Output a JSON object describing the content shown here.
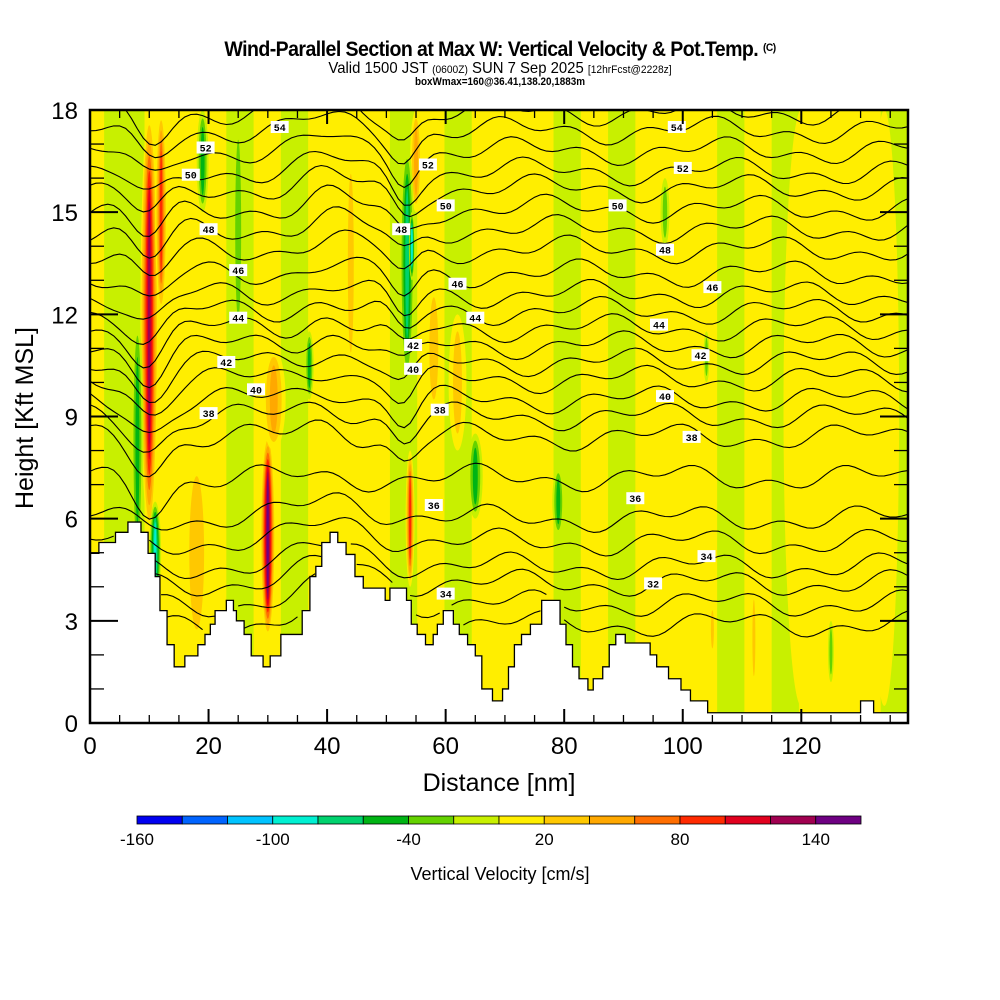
{
  "header": {
    "title": "Wind-Parallel Section at Max W: Vertical Velocity & Pot.Temp.",
    "copyright": "(C)",
    "valid_prefix": "Valid 1500 JST",
    "valid_utc": "(0600Z)",
    "valid_date": "SUN 7 Sep 2025",
    "forecast": "[12hrFcst@2228z]",
    "boxwmax": "boxWmax=160@36.41,138.20,1883m"
  },
  "chart_data": {
    "type": "heatmap",
    "title": "Wind-Parallel Section at Max W: Vertical Velocity & Pot.Temp.",
    "xlabel": "Distance [nm]",
    "ylabel": "Height [Kft MSL]",
    "xlim": [
      0,
      138
    ],
    "ylim": [
      0,
      18
    ],
    "xticks": [
      0,
      20,
      40,
      60,
      80,
      100,
      120
    ],
    "yticks": [
      0,
      3,
      6,
      9,
      12,
      15,
      18
    ],
    "x_minor_step": 5,
    "y_minor_step": 1,
    "colorbar": {
      "label": "Vertical Velocity [cm/s]",
      "range": [
        -160,
        160
      ],
      "step": 20,
      "tick_labels": [
        "-160",
        "-100",
        "-40",
        "20",
        "80",
        "140"
      ],
      "tick_values": [
        -160,
        -100,
        -40,
        20,
        80,
        140
      ],
      "colors": [
        "#0000f0",
        "#0064ff",
        "#00c3ff",
        "#00f0d2",
        "#00d26e",
        "#00b414",
        "#64d200",
        "#c8f000",
        "#ffee00",
        "#ffc800",
        "#ffa800",
        "#ff6e00",
        "#ff2a00",
        "#e1001e",
        "#a00050",
        "#6e0082"
      ]
    },
    "w_features": [
      {
        "x": 10,
        "y0": 5.5,
        "y1": 18,
        "w": 130,
        "width": 3
      },
      {
        "x": 12,
        "y0": 12,
        "y1": 18,
        "w": 90,
        "width": 2
      },
      {
        "x": 8,
        "y0": 4.5,
        "y1": 12,
        "w": -50,
        "width": 2
      },
      {
        "x": 11,
        "y0": 3.5,
        "y1": 6.5,
        "w": -90,
        "width": 2
      },
      {
        "x": 30,
        "y0": 2.5,
        "y1": 8.5,
        "w": 160,
        "width": 2.5
      },
      {
        "x": 31,
        "y0": 8,
        "y1": 11,
        "w": 60,
        "width": 4
      },
      {
        "x": 19,
        "y0": 15,
        "y1": 18,
        "w": -45,
        "width": 2
      },
      {
        "x": 25,
        "y0": 11,
        "y1": 18,
        "w": -30,
        "width": 2
      },
      {
        "x": 37,
        "y0": 9.5,
        "y1": 11.5,
        "w": -50,
        "width": 1.5
      },
      {
        "x": 54,
        "y0": 4,
        "y1": 8,
        "w": 100,
        "width": 1.5
      },
      {
        "x": 55,
        "y0": 15,
        "y1": 18,
        "w": 50,
        "width": 2
      },
      {
        "x": 53.5,
        "y0": 10,
        "y1": 17,
        "w": -70,
        "width": 2.5
      },
      {
        "x": 54.3,
        "y0": 13,
        "y1": 15,
        "w": -90,
        "width": 1
      },
      {
        "x": 65,
        "y0": 6,
        "y1": 8.5,
        "w": -50,
        "width": 2.5
      },
      {
        "x": 79,
        "y0": 5.5,
        "y1": 7.5,
        "w": -55,
        "width": 2
      },
      {
        "x": 58,
        "y0": 9,
        "y1": 13,
        "w": 30,
        "width": 3
      },
      {
        "x": 97,
        "y0": 14,
        "y1": 16,
        "w": -30,
        "width": 1.5
      },
      {
        "x": 104,
        "y0": 10,
        "y1": 11.5,
        "w": -30,
        "width": 1
      },
      {
        "x": 112,
        "y0": 1,
        "y1": 4,
        "w": 40,
        "width": 1
      },
      {
        "x": 105,
        "y0": 2,
        "y1": 3.5,
        "w": 30,
        "width": 1
      },
      {
        "x": 125,
        "y0": 1.2,
        "y1": 3,
        "w": -30,
        "width": 1
      },
      {
        "x": 62,
        "y0": 8,
        "y1": 12,
        "w": 25,
        "width": 3
      },
      {
        "x": 44,
        "y0": 10,
        "y1": 17,
        "w": 30,
        "width": 2
      },
      {
        "x": 85,
        "y0": 10,
        "y1": 18,
        "w": 15,
        "width": 4
      },
      {
        "x": 120,
        "y0": 0.5,
        "y1": 18,
        "w": 15,
        "width": 6
      },
      {
        "x": 134,
        "y0": 0.5,
        "y1": 18,
        "w": 15,
        "width": 5
      },
      {
        "x": 18,
        "y0": 2,
        "y1": 8,
        "w": 30,
        "width": 5
      }
    ],
    "theta_contours": {
      "unit": "Pot.Temp.",
      "levels": [
        31,
        32,
        33,
        34,
        35,
        36,
        37,
        38,
        39,
        40,
        41,
        42,
        43,
        44,
        45,
        46,
        47,
        48,
        49,
        50,
        51,
        52,
        53,
        54,
        55
      ],
      "base_heights": [
        2.9,
        3.5,
        4.1,
        4.6,
        5.3,
        6.0,
        7.2,
        8.4,
        9.0,
        9.5,
        10.1,
        10.6,
        11.1,
        11.6,
        12.1,
        12.6,
        13.2,
        13.9,
        14.5,
        15.1,
        15.7,
        16.2,
        16.8,
        17.4,
        17.95
      ],
      "labels": [
        {
          "text": "54",
          "x": 32,
          "y": 17.5
        },
        {
          "text": "52",
          "x": 19.5,
          "y": 16.9
        },
        {
          "text": "50",
          "x": 17,
          "y": 16.1
        },
        {
          "text": "48",
          "x": 20,
          "y": 14.5
        },
        {
          "text": "46",
          "x": 25,
          "y": 13.3
        },
        {
          "text": "44",
          "x": 25,
          "y": 11.9
        },
        {
          "text": "42",
          "x": 23,
          "y": 10.6
        },
        {
          "text": "40",
          "x": 28,
          "y": 9.8
        },
        {
          "text": "38",
          "x": 20,
          "y": 9.1
        },
        {
          "text": "52",
          "x": 57,
          "y": 16.4
        },
        {
          "text": "50",
          "x": 60,
          "y": 15.2
        },
        {
          "text": "48",
          "x": 52.5,
          "y": 14.5
        },
        {
          "text": "46",
          "x": 62,
          "y": 12.9
        },
        {
          "text": "44",
          "x": 65,
          "y": 11.9
        },
        {
          "text": "42",
          "x": 54.5,
          "y": 11.1
        },
        {
          "text": "40",
          "x": 54.5,
          "y": 10.4
        },
        {
          "text": "38",
          "x": 59,
          "y": 9.2
        },
        {
          "text": "36",
          "x": 58,
          "y": 6.4
        },
        {
          "text": "34",
          "x": 60,
          "y": 3.8
        },
        {
          "text": "54",
          "x": 99,
          "y": 17.5
        },
        {
          "text": "52",
          "x": 100,
          "y": 16.3
        },
        {
          "text": "50",
          "x": 89,
          "y": 15.2
        },
        {
          "text": "48",
          "x": 97,
          "y": 13.9
        },
        {
          "text": "46",
          "x": 105,
          "y": 12.8
        },
        {
          "text": "44",
          "x": 96,
          "y": 11.7
        },
        {
          "text": "42",
          "x": 103,
          "y": 10.8
        },
        {
          "text": "40",
          "x": 97,
          "y": 9.6
        },
        {
          "text": "38",
          "x": 101.5,
          "y": 8.4
        },
        {
          "text": "36",
          "x": 92,
          "y": 6.6
        },
        {
          "text": "34",
          "x": 104,
          "y": 4.9
        },
        {
          "text": "32",
          "x": 95,
          "y": 4.1
        }
      ]
    },
    "terrain": [
      [
        0,
        4.98
      ],
      [
        1.5,
        5.3
      ],
      [
        4.3,
        5.6
      ],
      [
        6.4,
        5.9
      ],
      [
        8.6,
        5.6
      ],
      [
        9.8,
        4.98
      ],
      [
        11.0,
        4.3
      ],
      [
        11.8,
        3.3
      ],
      [
        13.0,
        2.3
      ],
      [
        14.2,
        1.65
      ],
      [
        16.0,
        1.97
      ],
      [
        18.2,
        2.3
      ],
      [
        19.4,
        2.6
      ],
      [
        20.3,
        2.9
      ],
      [
        21.1,
        3.3
      ],
      [
        23.0,
        3.6
      ],
      [
        24.2,
        3.3
      ],
      [
        24.7,
        3.0
      ],
      [
        26.0,
        2.6
      ],
      [
        27.2,
        1.97
      ],
      [
        29.2,
        1.65
      ],
      [
        30.4,
        1.97
      ],
      [
        32.2,
        2.6
      ],
      [
        35.8,
        3.3
      ],
      [
        37.1,
        4.3
      ],
      [
        38.1,
        4.6
      ],
      [
        39.1,
        5.3
      ],
      [
        40.5,
        5.6
      ],
      [
        41.8,
        5.3
      ],
      [
        43.2,
        4.95
      ],
      [
        44.7,
        4.3
      ],
      [
        46.1,
        3.96
      ],
      [
        49.8,
        3.6
      ],
      [
        50.6,
        3.96
      ],
      [
        53.4,
        3.6
      ],
      [
        54.2,
        2.9
      ],
      [
        55.2,
        2.6
      ],
      [
        56.6,
        2.3
      ],
      [
        57.9,
        2.6
      ],
      [
        58.6,
        2.9
      ],
      [
        59.6,
        3.3
      ],
      [
        61.3,
        2.9
      ],
      [
        62.3,
        2.6
      ],
      [
        63.7,
        2.3
      ],
      [
        65.0,
        1.97
      ],
      [
        66.1,
        1.0
      ],
      [
        67.9,
        0.65
      ],
      [
        69.6,
        1.0
      ],
      [
        70.6,
        1.65
      ],
      [
        71.6,
        2.3
      ],
      [
        72.8,
        2.6
      ],
      [
        74.3,
        2.9
      ],
      [
        76.2,
        3.6
      ],
      [
        79.3,
        2.9
      ],
      [
        80.3,
        2.3
      ],
      [
        81.4,
        1.65
      ],
      [
        82.5,
        1.3
      ],
      [
        84.0,
        0.97
      ],
      [
        84.9,
        1.3
      ],
      [
        86.5,
        1.65
      ],
      [
        87.6,
        2.3
      ],
      [
        88.7,
        2.6
      ],
      [
        90.3,
        2.35
      ],
      [
        94.5,
        2.0
      ],
      [
        95.6,
        1.65
      ],
      [
        97.6,
        1.3
      ],
      [
        99.7,
        0.97
      ],
      [
        101.3,
        0.65
      ],
      [
        104.2,
        0.3
      ],
      [
        130.0,
        0.65
      ],
      [
        132.2,
        0.3
      ],
      [
        138,
        0.3
      ]
    ]
  }
}
